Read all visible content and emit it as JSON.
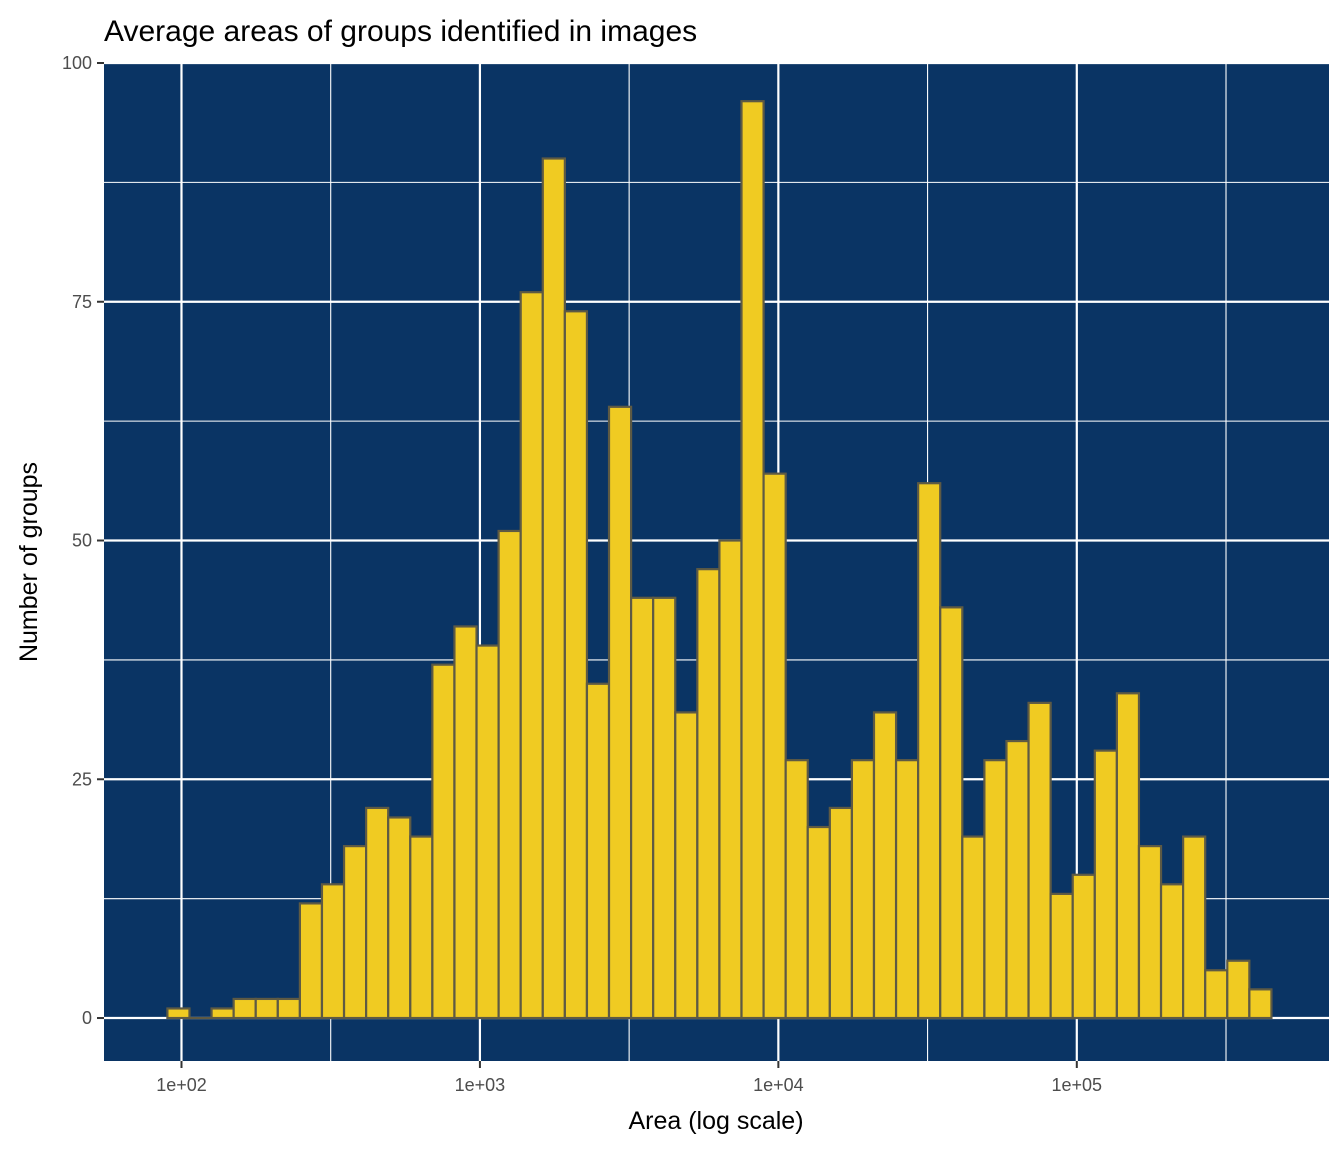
{
  "chart_data": {
    "type": "bar",
    "title": "Average areas of groups identified in images",
    "xlabel": "Area (log scale)",
    "ylabel": "Number of groups",
    "x_scale": "log10",
    "xlim": [
      55,
      700000
    ],
    "ylim": [
      -4.5,
      100
    ],
    "x_ticks": [
      {
        "value": 100,
        "label": "1e+02"
      },
      {
        "value": 1000,
        "label": "1e+03"
      },
      {
        "value": 10000,
        "label": "1e+04"
      },
      {
        "value": 100000,
        "label": "1e+05"
      }
    ],
    "y_ticks": [
      {
        "value": 0,
        "label": "0"
      },
      {
        "value": 25,
        "label": "25"
      },
      {
        "value": 50,
        "label": "50"
      },
      {
        "value": 75,
        "label": "75"
      },
      {
        "value": 100,
        "label": "100"
      }
    ],
    "bins": {
      "x_start": 89.7,
      "x_end": 449000,
      "counts": [
        1,
        0,
        1,
        2,
        2,
        2,
        12,
        14,
        18,
        22,
        21,
        19,
        37,
        41,
        39,
        51,
        76,
        90,
        74,
        35,
        64,
        44,
        44,
        32,
        47,
        50,
        96,
        57,
        27,
        20,
        22,
        27,
        32,
        27,
        56,
        43,
        19,
        27,
        29,
        33,
        13,
        15,
        28,
        34,
        18,
        14,
        19,
        5,
        6,
        3
      ]
    },
    "grid": true,
    "colors": {
      "panel": "#0a3464",
      "bar_fill": "#f0cb22",
      "bar_stroke": "#5e5a44",
      "grid": "#ffffff"
    }
  }
}
